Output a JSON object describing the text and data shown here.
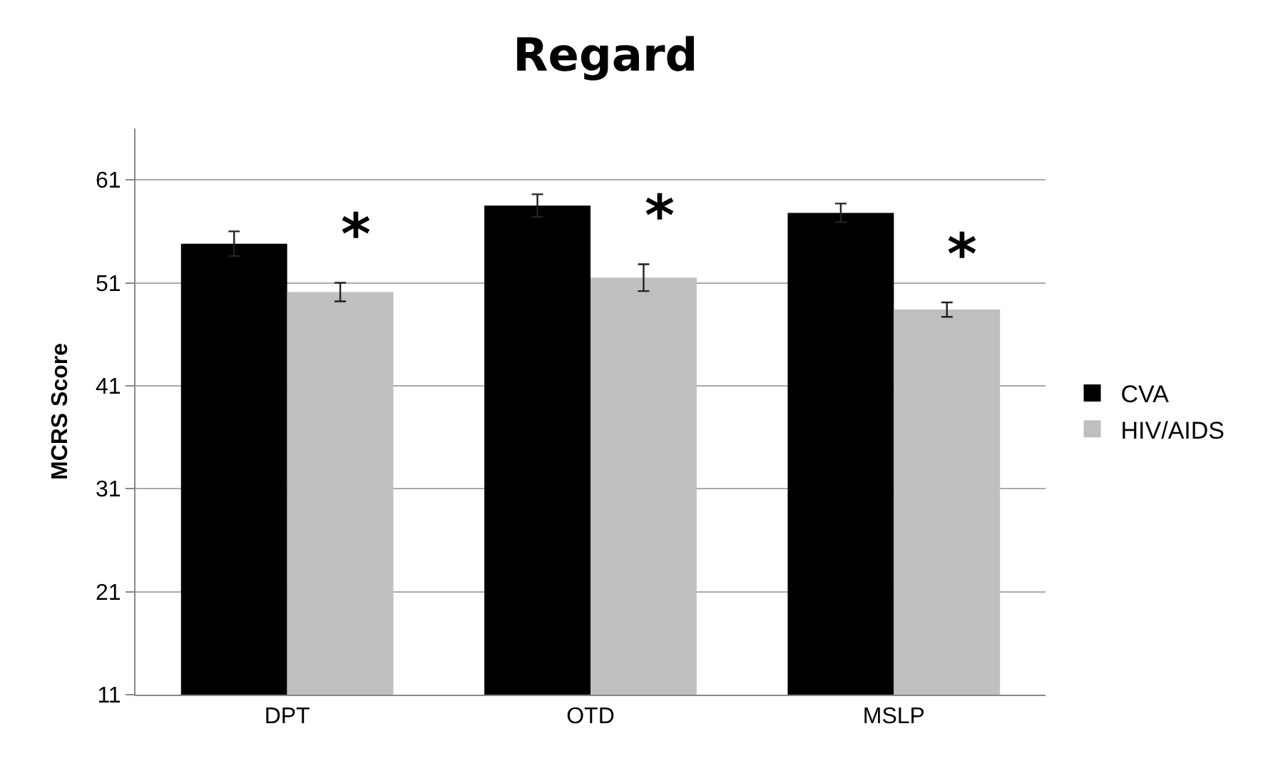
{
  "chart_data": {
    "type": "bar",
    "title": "Regard",
    "ylabel": "MCRS Score",
    "categories": [
      "DPT",
      "OTD",
      "MSLP"
    ],
    "series": [
      {
        "name": "CVA",
        "color": "#000000",
        "values": [
          54.8,
          58.5,
          57.8
        ],
        "errors": [
          1.2,
          1.1,
          0.9
        ]
      },
      {
        "name": "HIV/AIDS",
        "color": "#bfbfbf",
        "values": [
          50.1,
          51.5,
          48.4
        ],
        "errors": [
          0.9,
          1.3,
          0.7
        ]
      }
    ],
    "annotations": [
      "*",
      "*",
      "*"
    ],
    "ylim": [
      11,
      66
    ],
    "yticks": [
      11,
      21,
      31,
      41,
      51,
      61
    ],
    "grid": "y",
    "legend": "right"
  }
}
